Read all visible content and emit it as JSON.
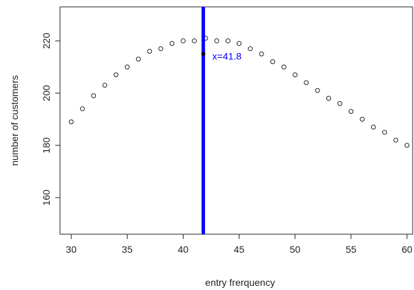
{
  "chart_data": {
    "type": "scatter",
    "title": "",
    "xlabel": "entry frerquency",
    "ylabel": "number of customers",
    "xlim": [
      29,
      60.5
    ],
    "ylim": [
      146,
      233
    ],
    "x_ticks": [
      30,
      35,
      40,
      45,
      50,
      55,
      60
    ],
    "y_ticks": [
      160,
      180,
      200,
      220
    ],
    "grid": false,
    "series": [
      {
        "marker": "open-circle",
        "x": [
          30,
          31,
          32,
          33,
          34,
          35,
          36,
          37,
          38,
          39,
          40,
          41,
          42,
          43,
          44,
          45,
          46,
          47,
          48,
          49,
          50,
          51,
          52,
          53,
          54,
          55,
          56,
          57,
          58,
          59,
          60
        ],
        "y": [
          189,
          194,
          199,
          203,
          207,
          210,
          213,
          216,
          217,
          219,
          220,
          220,
          221,
          220,
          220,
          219,
          217,
          215,
          212,
          210,
          207,
          204,
          201,
          198,
          196,
          193,
          190,
          187,
          185,
          182,
          180
        ]
      }
    ],
    "annotations": [
      {
        "type": "vline",
        "x": 41.8,
        "color": "#0000ff"
      },
      {
        "type": "point",
        "x": 41.8,
        "y": 215,
        "color": "#000000"
      },
      {
        "type": "text",
        "text": "x=41.8",
        "x": 41.8,
        "y": 215,
        "color": "#0000ff"
      }
    ]
  }
}
